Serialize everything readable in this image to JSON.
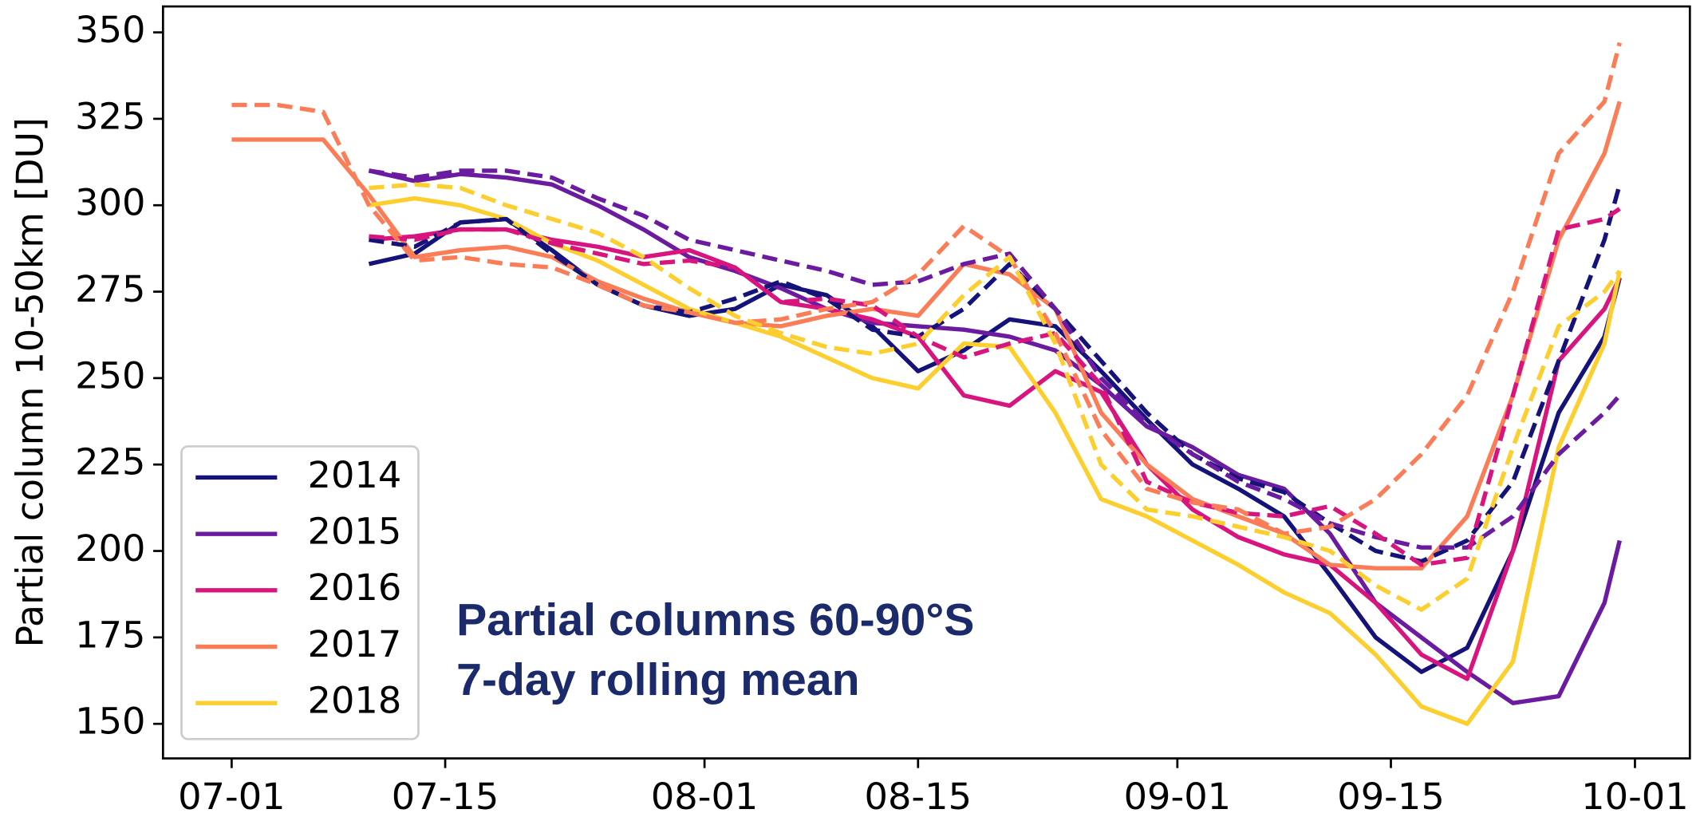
{
  "chart_data": {
    "type": "line",
    "ylabel": "Partial column 10-50km [DU]",
    "annotations": [
      "Partial columns 60-90°S",
      "7-day rolling mean"
    ],
    "x": [
      0,
      3,
      6,
      9,
      12,
      15,
      18,
      21,
      24,
      27,
      30,
      33,
      36,
      39,
      42,
      45,
      48,
      51,
      54,
      57,
      60,
      63,
      66,
      69,
      72,
      75,
      78,
      81,
      84,
      87,
      90,
      91
    ],
    "xlim": [
      -4.5,
      95.6
    ],
    "xticks": [
      {
        "value": 0,
        "label": "07-01"
      },
      {
        "value": 14,
        "label": "07-15"
      },
      {
        "value": 31,
        "label": "08-01"
      },
      {
        "value": 45,
        "label": "08-15"
      },
      {
        "value": 62,
        "label": "09-01"
      },
      {
        "value": 76,
        "label": "09-15"
      },
      {
        "value": 92,
        "label": "10-01"
      }
    ],
    "ylim": [
      140,
      357.5
    ],
    "yticks": [
      150,
      175,
      200,
      225,
      250,
      275,
      300,
      325,
      350
    ],
    "legend": "lower left",
    "series": [
      {
        "name": "2014",
        "color": "#15137a",
        "values": [
          null,
          null,
          null,
          283,
          286,
          295,
          296,
          287,
          277,
          271,
          268,
          270,
          277,
          274,
          265,
          252,
          258,
          267,
          265,
          252,
          238,
          225,
          218,
          210,
          193,
          175,
          165,
          172,
          200,
          240,
          262,
          279
        ]
      },
      {
        "name": "2015",
        "color": "#6a1b9f",
        "values": [
          null,
          null,
          null,
          310,
          307,
          309,
          308,
          306,
          300,
          293,
          285,
          281,
          276,
          270,
          266,
          265,
          264,
          262,
          258,
          248,
          236,
          230,
          222,
          218,
          205,
          185,
          175,
          165,
          156,
          158,
          185,
          203
        ]
      },
      {
        "name": "2016",
        "color": "#d8157e",
        "values": [
          null,
          null,
          null,
          290,
          291,
          293,
          293,
          290,
          288,
          285,
          287,
          282,
          272,
          270,
          267,
          262,
          245,
          242,
          252,
          246,
          225,
          212,
          204,
          199,
          196,
          185,
          170,
          163,
          200,
          255,
          270,
          279
        ]
      },
      {
        "name": "2017",
        "color": "#fb7d57",
        "values": [
          319,
          319,
          319,
          303,
          285,
          287,
          288,
          285,
          278,
          273,
          269,
          266,
          265,
          268,
          270,
          268,
          283,
          280,
          270,
          240,
          225,
          215,
          210,
          205,
          196,
          195,
          195,
          210,
          245,
          290,
          315,
          330
        ]
      },
      {
        "name": "2018",
        "color": "#fcce2e",
        "values": [
          null,
          null,
          null,
          300,
          302,
          300,
          296,
          289,
          284,
          277,
          270,
          266,
          262,
          256,
          250,
          247,
          260,
          259,
          240,
          215,
          210,
          203,
          196,
          188,
          182,
          170,
          155,
          150,
          168,
          230,
          260,
          281
        ]
      },
      {
        "color": "#15137a",
        "dashed": true,
        "values": [
          null,
          null,
          null,
          290,
          288,
          295,
          296,
          286,
          277,
          271,
          269,
          273,
          278,
          273,
          264,
          262,
          270,
          283,
          270,
          255,
          240,
          228,
          221,
          217,
          208,
          200,
          197,
          203,
          220,
          255,
          290,
          306
        ]
      },
      {
        "color": "#6a1b9f",
        "dashed": true,
        "values": [
          null,
          null,
          null,
          310,
          308,
          310,
          310,
          308,
          302,
          297,
          290,
          287,
          284,
          281,
          277,
          278,
          283,
          286,
          270,
          250,
          237,
          228,
          220,
          215,
          208,
          204,
          201,
          201,
          210,
          228,
          240,
          245
        ]
      },
      {
        "color": "#d8157e",
        "dashed": true,
        "values": [
          null,
          null,
          null,
          291,
          290,
          293,
          293,
          289,
          286,
          283,
          284,
          282,
          272,
          273,
          271,
          262,
          256,
          260,
          263,
          248,
          220,
          214,
          211,
          210,
          213,
          205,
          196,
          198,
          245,
          293,
          296,
          299
        ]
      },
      {
        "color": "#fb7d57",
        "dashed": true,
        "values": [
          329,
          329,
          327,
          300,
          284,
          285,
          283,
          282,
          277,
          271,
          269,
          266,
          267,
          270,
          272,
          280,
          294,
          285,
          263,
          235,
          218,
          214,
          212,
          205,
          207,
          215,
          228,
          245,
          275,
          315,
          330,
          347
        ]
      },
      {
        "color": "#fcce2e",
        "dashed": true,
        "values": [
          null,
          null,
          null,
          305,
          306,
          305,
          300,
          296,
          292,
          285,
          276,
          268,
          263,
          259,
          257,
          260,
          274,
          285,
          260,
          225,
          212,
          210,
          207,
          204,
          200,
          190,
          183,
          192,
          230,
          265,
          275,
          281
        ]
      }
    ]
  }
}
